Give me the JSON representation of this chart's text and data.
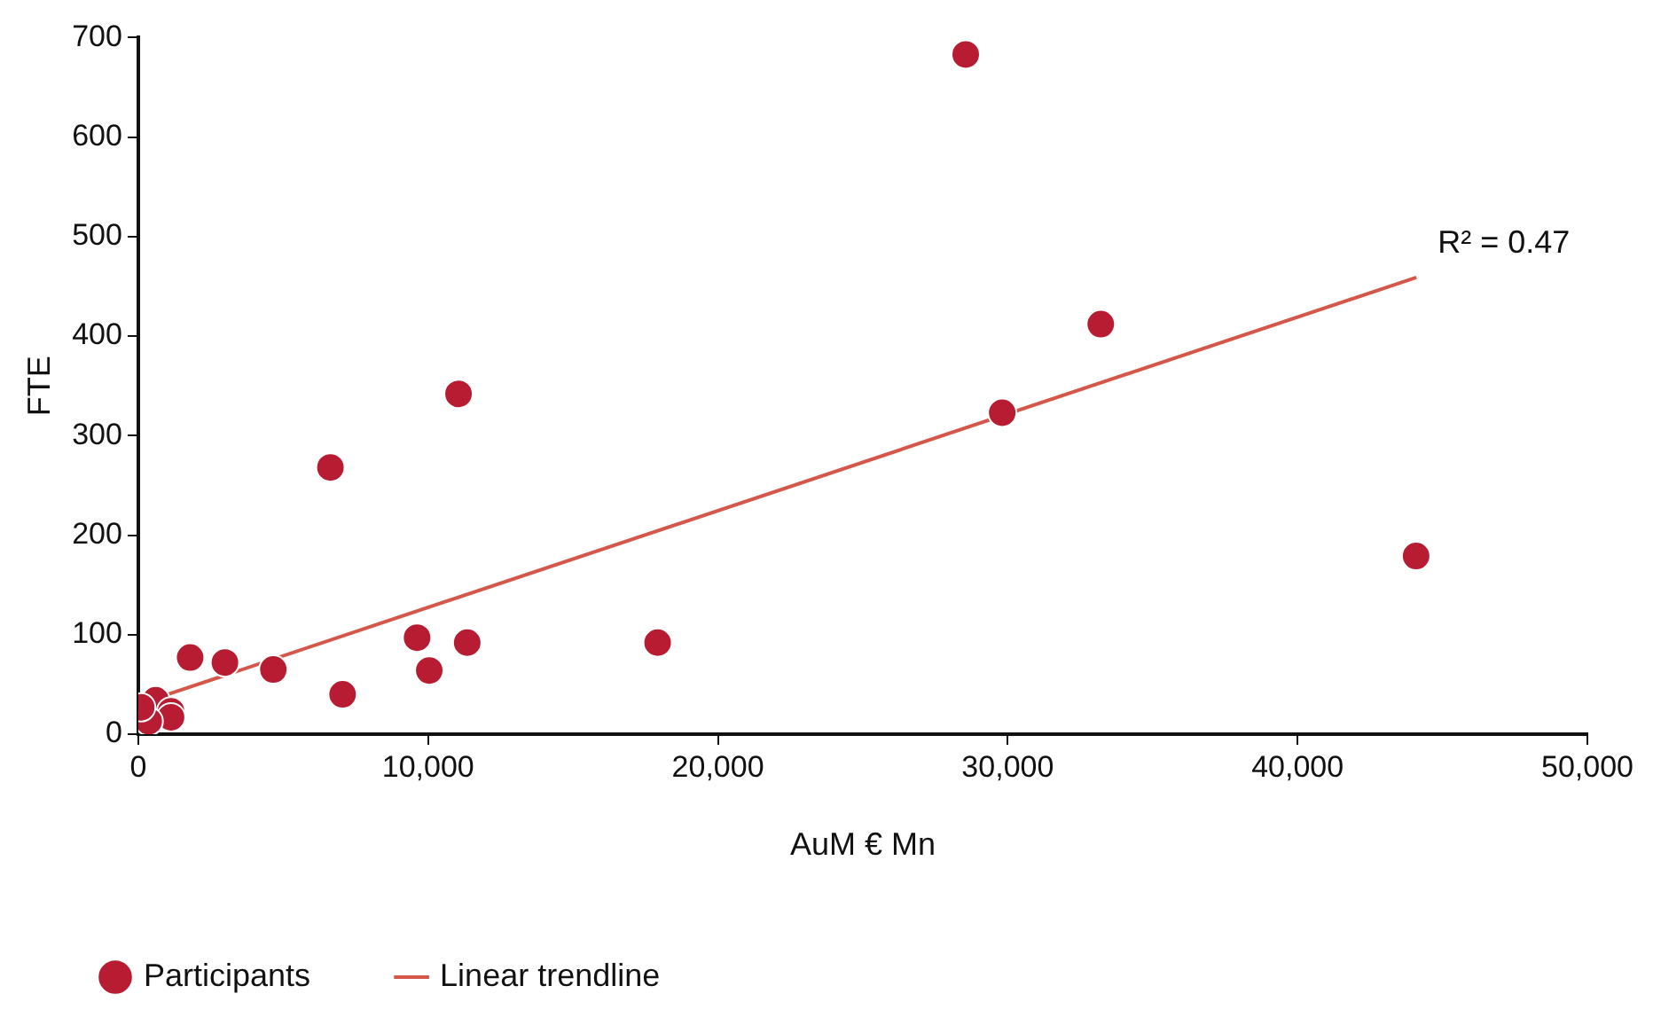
{
  "chart_data": {
    "type": "scatter",
    "xlabel": "AuM € Mn",
    "ylabel": "FTE",
    "xlim": [
      0,
      50000
    ],
    "ylim": [
      0,
      700
    ],
    "xticks": [
      0,
      {
        "value": 10000,
        "label": "10,000"
      },
      {
        "value": 20000,
        "label": "20,000"
      },
      {
        "value": 30000,
        "label": "30,000"
      },
      {
        "value": 40000,
        "label": "40,000"
      },
      {
        "value": 50000,
        "label": "50,000"
      }
    ],
    "yticks": [
      0,
      100,
      200,
      300,
      400,
      500,
      600,
      700
    ],
    "grid": false,
    "legend": "bottom left",
    "marker": "circle",
    "series": [
      {
        "name": "Participants",
        "type": "scatter",
        "color": "#b71c32",
        "x": [
          28550,
          33210,
          29810,
          11050,
          6630,
          44090,
          9620,
          11350,
          17920,
          10040,
          7050,
          4660,
          2990,
          1790,
          600,
          1130,
          1130,
          360,
          100
        ],
        "values": [
          683,
          412,
          323,
          342,
          268,
          179,
          97,
          92,
          92,
          64,
          40,
          65,
          72,
          77,
          34,
          23,
          17,
          13,
          27
        ]
      },
      {
        "name": "Linear trendline",
        "type": "line",
        "color": "#d4574a",
        "x": [
          300,
          44100
        ],
        "values": [
          33,
          459
        ],
        "marker": "none"
      }
    ],
    "annotations": [
      {
        "text": "R² = 0.47",
        "x": 44100,
        "y": 459
      }
    ]
  }
}
